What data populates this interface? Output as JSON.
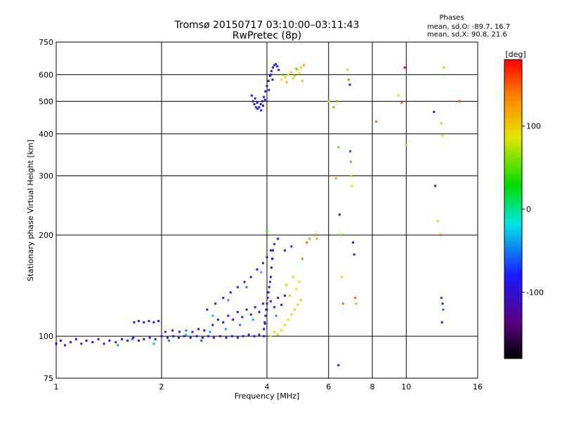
{
  "chart_data": {
    "type": "scatter",
    "title": "Tromsø 20150717 03:10:00–03:11:43",
    "subtitle": "RwPretec (8p)",
    "xlabel": "Frequency [MHz]",
    "ylabel": "Stationary phase Virtual Height [km]",
    "x_scale": "log",
    "y_scale": "log",
    "xlim": [
      1,
      16
    ],
    "ylim": [
      75,
      750
    ],
    "x_ticks": [
      1,
      2,
      4,
      6,
      8,
      10,
      16
    ],
    "y_ticks": [
      75,
      100,
      200,
      300,
      400,
      500,
      600,
      750
    ],
    "grid": true,
    "phases_info": {
      "heading": "Phases",
      "line_o": "mean, sd,O: -89.7, 16.7",
      "line_x": "mean, sd,X:  90.8, 21.6"
    },
    "colorbar": {
      "label": "[deg]",
      "ticks": [
        100,
        0,
        -100
      ],
      "range": [
        -180,
        180
      ],
      "colormap": "rainbow (black → purple → blue → cyan → green → yellow → red)"
    },
    "clusters": [
      {
        "name": "low_blue",
        "points": [
          [
            1.0,
            95,
            -110
          ],
          [
            1.03,
            97,
            -105
          ],
          [
            1.06,
            94,
            -115
          ],
          [
            1.1,
            96,
            -108
          ],
          [
            1.14,
            98,
            -100
          ],
          [
            1.18,
            95,
            -112
          ],
          [
            1.22,
            97,
            -106
          ],
          [
            1.27,
            96,
            -118
          ],
          [
            1.32,
            98,
            -104
          ],
          [
            1.37,
            95,
            -110
          ],
          [
            1.42,
            97,
            -102
          ],
          [
            1.48,
            96,
            -114
          ],
          [
            1.54,
            98,
            -108
          ],
          [
            1.6,
            97,
            -100
          ],
          [
            1.66,
            99,
            -112
          ],
          [
            1.72,
            97,
            -106
          ],
          [
            1.78,
            98,
            -116
          ],
          [
            1.85,
            99,
            -104
          ],
          [
            1.92,
            98,
            -110
          ],
          [
            2.0,
            100,
            -102
          ],
          [
            2.08,
            99,
            -114
          ],
          [
            2.16,
            100,
            -108
          ],
          [
            2.24,
            99,
            -100
          ],
          [
            2.32,
            100,
            -112
          ],
          [
            2.42,
            99,
            -106
          ],
          [
            2.52,
            100,
            -116
          ],
          [
            2.62,
            99,
            -104
          ],
          [
            2.72,
            100,
            -110
          ],
          [
            2.82,
            99,
            -102
          ],
          [
            2.94,
            100,
            -114
          ],
          [
            3.06,
            99,
            -108
          ],
          [
            3.18,
            100,
            -100
          ],
          [
            3.3,
            99,
            -112
          ],
          [
            3.42,
            100,
            -106
          ],
          [
            3.55,
            101,
            -116
          ],
          [
            3.68,
            100,
            -104
          ],
          [
            3.8,
            101,
            -110
          ],
          [
            3.92,
            100,
            -102
          ],
          [
            1.5,
            94,
            -60
          ],
          [
            1.65,
            98,
            -70
          ],
          [
            1.9,
            95,
            -55
          ],
          [
            2.1,
            97,
            -65
          ],
          [
            2.35,
            101,
            -50
          ],
          [
            2.6,
            97,
            -75
          ]
        ]
      },
      {
        "name": "shelf_105",
        "points": [
          [
            1.67,
            110,
            -110
          ],
          [
            1.72,
            111,
            -100
          ],
          [
            1.78,
            110,
            -112
          ],
          [
            1.84,
            111,
            -106
          ],
          [
            1.9,
            110,
            -104
          ],
          [
            1.96,
            111,
            -108
          ],
          [
            2.05,
            103,
            -100
          ],
          [
            2.15,
            104,
            -112
          ],
          [
            2.25,
            103,
            -106
          ],
          [
            2.35,
            104,
            -70
          ],
          [
            2.45,
            103,
            -108
          ],
          [
            2.55,
            105,
            -100
          ],
          [
            2.65,
            104,
            -112
          ],
          [
            2.75,
            103,
            -60
          ]
        ]
      },
      {
        "name": "ramp_lower",
        "points": [
          [
            2.8,
            108,
            -110
          ],
          [
            2.9,
            112,
            -100
          ],
          [
            3.0,
            110,
            -112
          ],
          [
            3.1,
            115,
            -106
          ],
          [
            3.2,
            112,
            -104
          ],
          [
            3.3,
            118,
            -108
          ],
          [
            3.4,
            114,
            -100
          ],
          [
            3.5,
            120,
            -112
          ],
          [
            3.6,
            116,
            -106
          ],
          [
            3.7,
            122,
            -104
          ],
          [
            3.8,
            118,
            -108
          ],
          [
            3.9,
            125,
            -100
          ],
          [
            4.0,
            120,
            -112
          ],
          [
            4.1,
            127,
            -106
          ],
          [
            4.2,
            122,
            -104
          ],
          [
            4.3,
            130,
            -108
          ],
          [
            4.4,
            124,
            -100
          ],
          [
            4.5,
            132,
            -112
          ],
          [
            3.05,
            105,
            -60
          ],
          [
            3.35,
            108,
            -70
          ],
          [
            3.65,
            112,
            -55
          ],
          [
            3.95,
            109,
            -130
          ],
          [
            4.25,
            115,
            -65
          ]
        ]
      },
      {
        "name": "ramp_upper",
        "points": [
          [
            2.7,
            120,
            -110
          ],
          [
            2.85,
            125,
            -100
          ],
          [
            3.0,
            130,
            -112
          ],
          [
            3.15,
            135,
            -106
          ],
          [
            3.3,
            140,
            -104
          ],
          [
            3.45,
            145,
            -108
          ],
          [
            3.6,
            150,
            -100
          ],
          [
            3.75,
            158,
            -112
          ],
          [
            3.9,
            165,
            -106
          ],
          [
            4.0,
            172,
            -104
          ],
          [
            4.1,
            180,
            -108
          ],
          [
            4.2,
            188,
            -100
          ],
          [
            4.3,
            195,
            -112
          ],
          [
            2.8,
            115,
            -50
          ],
          [
            3.1,
            128,
            -60
          ],
          [
            3.5,
            140,
            -70
          ],
          [
            3.85,
            155,
            -55
          ],
          [
            4.15,
            170,
            -65
          ]
        ]
      },
      {
        "name": "near4_vertical",
        "points": [
          [
            3.92,
            105,
            -110
          ],
          [
            3.94,
            110,
            -100
          ],
          [
            3.96,
            115,
            -112
          ],
          [
            3.98,
            120,
            -106
          ],
          [
            4.0,
            125,
            -104
          ],
          [
            4.02,
            130,
            -108
          ],
          [
            4.04,
            135,
            -100
          ],
          [
            4.06,
            140,
            -112
          ],
          [
            4.08,
            145,
            -106
          ],
          [
            4.1,
            150,
            -104
          ],
          [
            4.12,
            160,
            -108
          ],
          [
            4.14,
            170,
            -100
          ],
          [
            4.16,
            180,
            -112
          ],
          [
            4.0,
            205,
            30
          ]
        ]
      },
      {
        "name": "right_yellow",
        "points": [
          [
            4.1,
            100,
            100
          ],
          [
            4.2,
            103,
            90
          ],
          [
            4.3,
            101,
            110
          ],
          [
            4.4,
            104,
            95
          ],
          [
            4.5,
            108,
            105
          ],
          [
            4.6,
            112,
            100
          ],
          [
            4.7,
            116,
            90
          ],
          [
            4.8,
            120,
            110
          ],
          [
            4.9,
            124,
            95
          ],
          [
            5.0,
            128,
            105
          ],
          [
            4.65,
            132,
            85
          ],
          [
            4.85,
            138,
            100
          ],
          [
            4.55,
            142,
            75
          ],
          [
            4.75,
            150,
            110
          ],
          [
            4.95,
            145,
            95
          ],
          [
            5.05,
            170,
            140
          ],
          [
            5.2,
            190,
            150
          ],
          [
            5.3,
            195,
            130
          ],
          [
            4.5,
            180,
            -110
          ],
          [
            4.7,
            185,
            -100
          ]
        ]
      },
      {
        "name": "upper_blue",
        "points": [
          [
            3.62,
            520,
            -110
          ],
          [
            3.65,
            500,
            -100
          ],
          [
            3.68,
            490,
            -112
          ],
          [
            3.72,
            480,
            -106
          ],
          [
            3.76,
            475,
            -104
          ],
          [
            3.8,
            480,
            -108
          ],
          [
            3.84,
            490,
            -100
          ],
          [
            3.88,
            500,
            -112
          ],
          [
            3.92,
            515,
            -106
          ],
          [
            3.96,
            535,
            -104
          ],
          [
            4.0,
            555,
            -108
          ],
          [
            4.04,
            575,
            -100
          ],
          [
            4.08,
            595,
            -112
          ],
          [
            4.12,
            615,
            -106
          ],
          [
            4.16,
            630,
            -104
          ],
          [
            4.2,
            640,
            -108
          ],
          [
            4.24,
            645,
            -100
          ],
          [
            4.28,
            635,
            -112
          ],
          [
            4.32,
            620,
            -106
          ],
          [
            3.7,
            510,
            -100
          ],
          [
            3.75,
            495,
            -110
          ],
          [
            3.85,
            470,
            -104
          ],
          [
            3.9,
            485,
            -112
          ],
          [
            3.95,
            505,
            -100
          ],
          [
            4.05,
            540,
            -108
          ],
          [
            4.1,
            600,
            -104
          ],
          [
            4.15,
            580,
            -112
          ]
        ]
      },
      {
        "name": "upper_yellow",
        "points": [
          [
            4.4,
            580,
            100
          ],
          [
            4.5,
            590,
            110
          ],
          [
            4.6,
            600,
            95
          ],
          [
            4.7,
            610,
            105
          ],
          [
            4.8,
            595,
            90
          ],
          [
            4.9,
            620,
            100
          ],
          [
            5.0,
            630,
            110
          ],
          [
            4.55,
            570,
            120
          ],
          [
            4.75,
            585,
            85
          ],
          [
            4.95,
            605,
            95
          ],
          [
            5.1,
            640,
            130
          ],
          [
            5.05,
            575,
            80
          ],
          [
            4.45,
            600,
            20
          ],
          [
            4.85,
            625,
            30
          ]
        ]
      },
      {
        "name": "sparse_right",
        "points": [
          [
            5.5,
            200,
            150
          ],
          [
            5.55,
            195,
            120
          ],
          [
            6.0,
            500,
            90
          ],
          [
            6.2,
            480,
            40
          ],
          [
            6.3,
            295,
            130
          ],
          [
            6.35,
            500,
            30
          ],
          [
            6.4,
            365,
            40
          ],
          [
            6.45,
            230,
            -110
          ],
          [
            6.5,
            200,
            40
          ],
          [
            6.55,
            150,
            110
          ],
          [
            6.6,
            125,
            150
          ],
          [
            6.4,
            82,
            -100
          ],
          [
            6.8,
            620,
            90
          ],
          [
            6.85,
            580,
            30
          ],
          [
            6.9,
            560,
            -110
          ],
          [
            6.92,
            355,
            -80
          ],
          [
            6.95,
            330,
            30
          ],
          [
            6.97,
            300,
            110
          ],
          [
            7.0,
            280,
            90
          ],
          [
            7.05,
            190,
            -110
          ],
          [
            7.1,
            175,
            -100
          ],
          [
            7.15,
            130,
            150
          ],
          [
            7.2,
            125,
            120
          ],
          [
            8.2,
            435,
            150
          ],
          [
            9.5,
            520,
            110
          ],
          [
            9.7,
            495,
            150
          ],
          [
            9.9,
            630,
            180
          ],
          [
            10.0,
            370,
            90
          ],
          [
            12.0,
            465,
            -110
          ],
          [
            12.1,
            280,
            -110
          ],
          [
            12.3,
            220,
            110
          ],
          [
            12.5,
            200,
            150
          ],
          [
            12.6,
            430,
            110
          ],
          [
            12.7,
            395,
            100
          ],
          [
            12.8,
            630,
            120
          ],
          [
            12.6,
            130,
            -90
          ],
          [
            12.7,
            125,
            -100
          ],
          [
            12.75,
            120,
            -80
          ],
          [
            12.65,
            110,
            -110
          ],
          [
            14.2,
            500,
            160
          ]
        ]
      }
    ]
  }
}
